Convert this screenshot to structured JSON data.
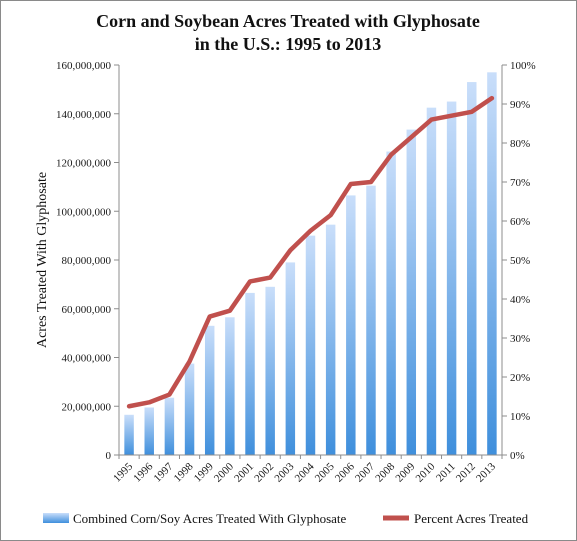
{
  "chart_data": {
    "type": "bar",
    "title_lines": [
      "Corn and Soybean Acres Treated with Glyphosate",
      "in the U.S.: 1995 to 2013"
    ],
    "categories": [
      "1995",
      "1996",
      "1997",
      "1998",
      "1999",
      "2000",
      "2001",
      "2002",
      "2003",
      "2004",
      "2005",
      "2006",
      "2007",
      "2008",
      "2009",
      "2010",
      "2011",
      "2012",
      "2013"
    ],
    "series": [
      {
        "name": "Combined Corn/Soy Acres Treated With Glyphosate",
        "type": "bar",
        "axis": "left",
        "values": [
          16500000,
          19500000,
          23500000,
          37500000,
          53000000,
          56500000,
          66500000,
          69000000,
          79000000,
          90000000,
          94500000,
          106500000,
          110500000,
          124500000,
          133500000,
          142500000,
          145000000,
          153000000,
          157000000
        ]
      },
      {
        "name": "Percent Acres Treated",
        "type": "line",
        "axis": "right",
        "values": [
          12.5,
          13.5,
          15.5,
          24,
          35.5,
          37,
          44.5,
          45.5,
          52.5,
          57.5,
          61.5,
          69.5,
          70,
          77,
          81.5,
          86,
          87,
          88,
          91.5
        ]
      }
    ],
    "ylabel": "Acres Treated With Glyphosate",
    "ylim": [
      0,
      160000000
    ],
    "y_ticks": [
      "0",
      "20,000,000",
      "40,000,000",
      "60,000,000",
      "80,000,000",
      "100,000,000",
      "120,000,000",
      "140,000,000",
      "160,000,000"
    ],
    "y2lim": [
      0,
      100
    ],
    "y2_ticks": [
      "0%",
      "10%",
      "20%",
      "30%",
      "40%",
      "50%",
      "60%",
      "70%",
      "80%",
      "90%",
      "100%"
    ],
    "grid": false,
    "legend": "bottom",
    "colors": {
      "bar_top": "#c9defa",
      "bar_bottom": "#3f8fdc",
      "line": "#c0504d",
      "axis": "#8c8c8c"
    }
  }
}
